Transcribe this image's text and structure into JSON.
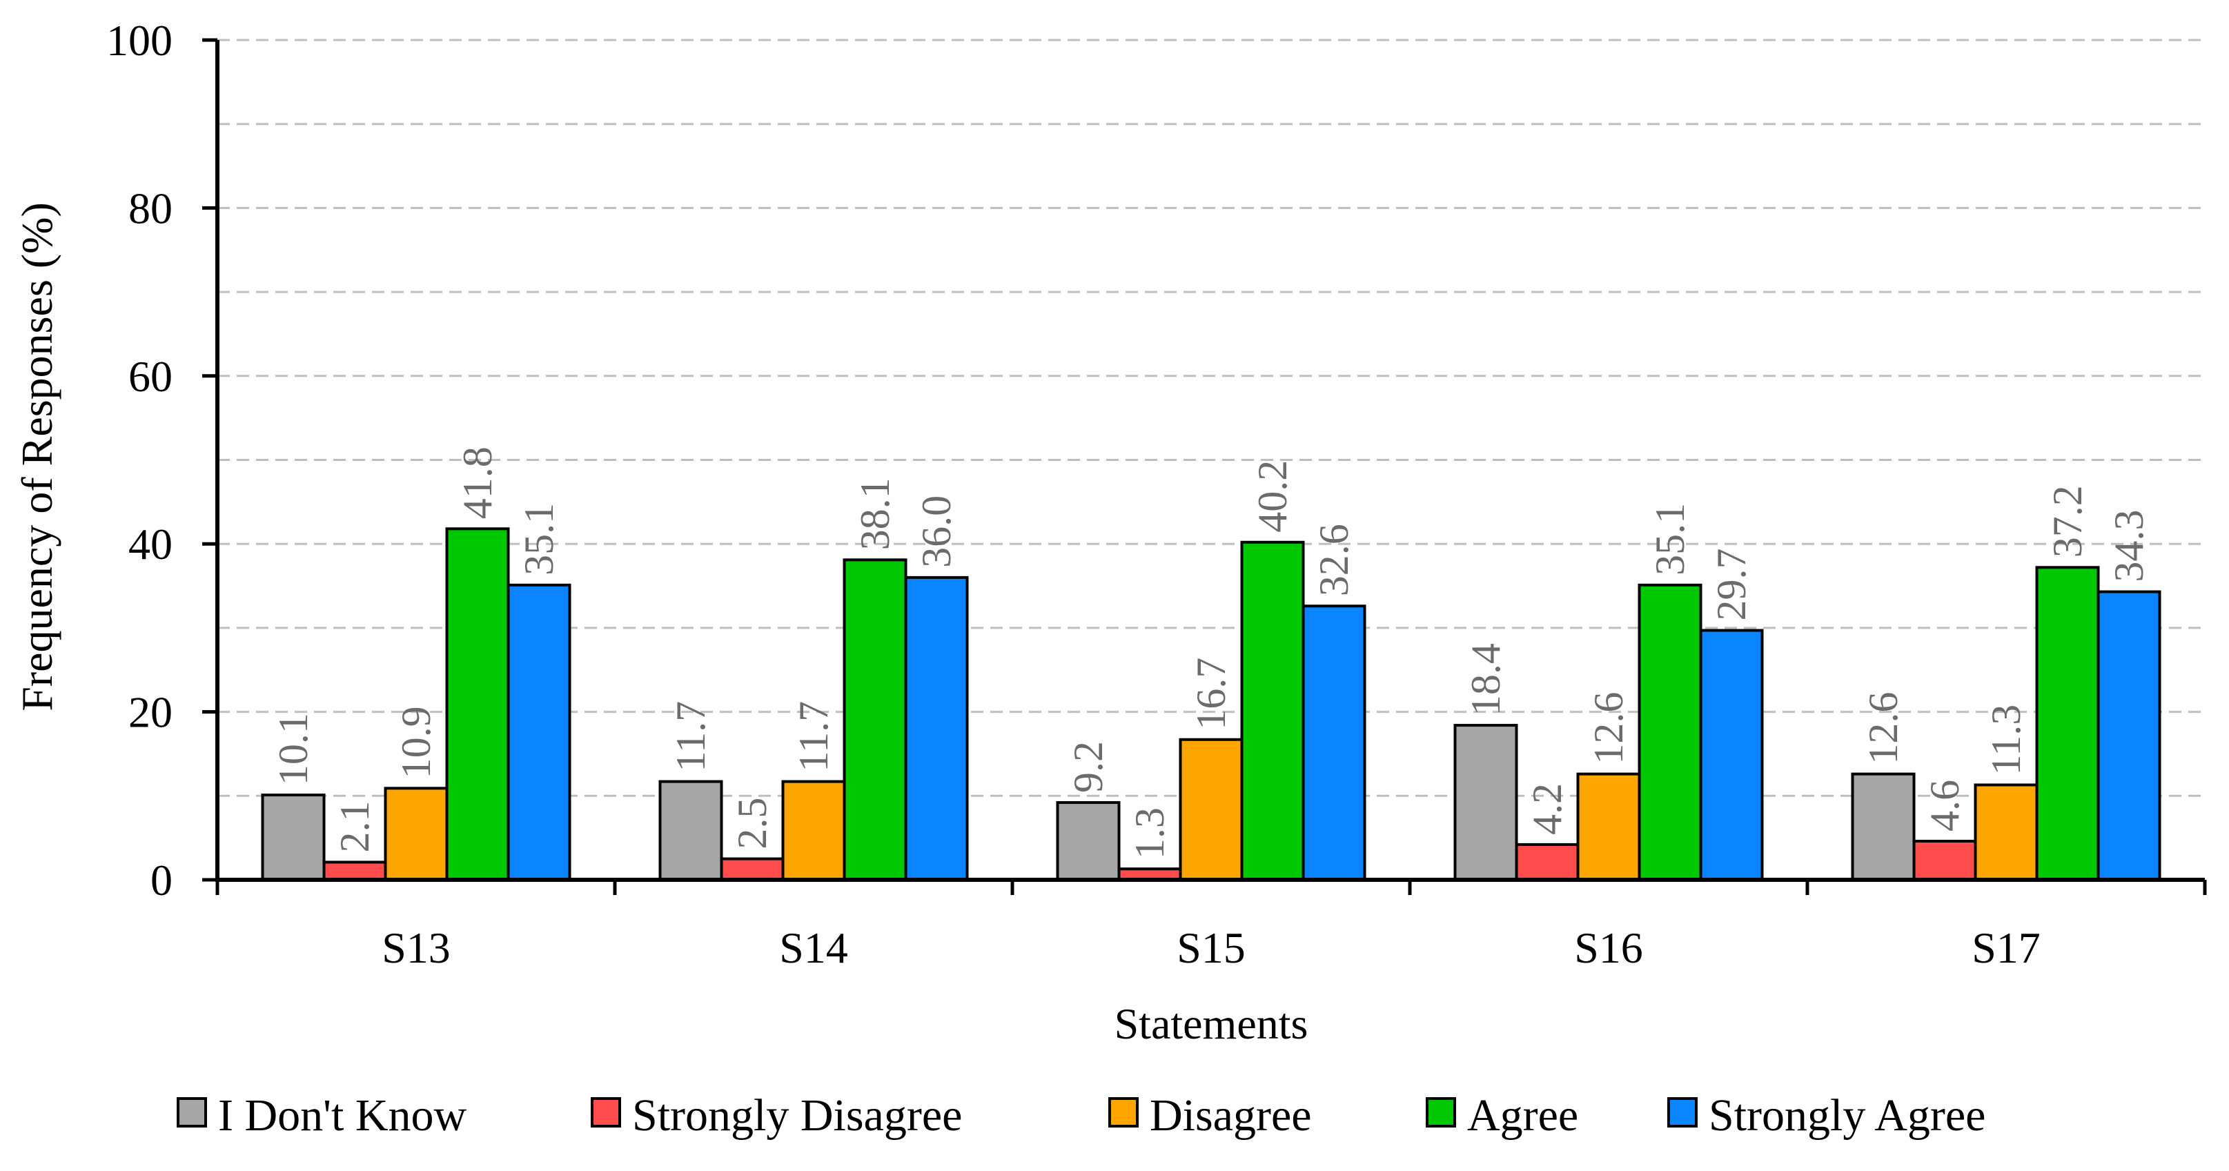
{
  "chart_data": {
    "type": "bar",
    "title": "",
    "xlabel": "Statements",
    "ylabel": "Frequency of Responses (%)",
    "ylim": [
      0,
      100
    ],
    "yticks": [
      0,
      20,
      40,
      60,
      80,
      100
    ],
    "grid": true,
    "legend_position": "bottom",
    "categories": [
      "S13",
      "S14",
      "S15",
      "S16",
      "S17"
    ],
    "series": [
      {
        "name": "I Don't Know",
        "color": "#a6a6a6",
        "values": [
          10.1,
          11.7,
          9.2,
          18.4,
          12.6
        ],
        "labels": [
          "10.1",
          "11.7",
          "9.2",
          "18.4",
          "12.6"
        ]
      },
      {
        "name": "Strongly Disagree",
        "color": "#ff4d4d",
        "values": [
          2.1,
          2.5,
          1.3,
          4.2,
          4.6
        ],
        "labels": [
          "2.1",
          "2.5",
          "1.3",
          "4.2",
          "4.6"
        ]
      },
      {
        "name": "Disagree",
        "color": "#ffa500",
        "values": [
          10.9,
          11.7,
          16.7,
          12.6,
          11.3
        ],
        "labels": [
          "10.9",
          "11.7",
          "16.7",
          "12.6",
          "11.3"
        ]
      },
      {
        "name": "Agree",
        "color": "#00c800",
        "values": [
          41.8,
          38.1,
          40.2,
          35.1,
          37.2
        ],
        "labels": [
          "41.8",
          "38.1",
          "40.2",
          "35.1",
          "37.2"
        ]
      },
      {
        "name": "Strongly Agree",
        "color": "#0a84ff",
        "values": [
          35.1,
          36.0,
          32.6,
          29.7,
          34.3
        ],
        "labels": [
          "35.1",
          "36.0",
          "32.6",
          "29.7",
          "34.3"
        ]
      }
    ]
  }
}
